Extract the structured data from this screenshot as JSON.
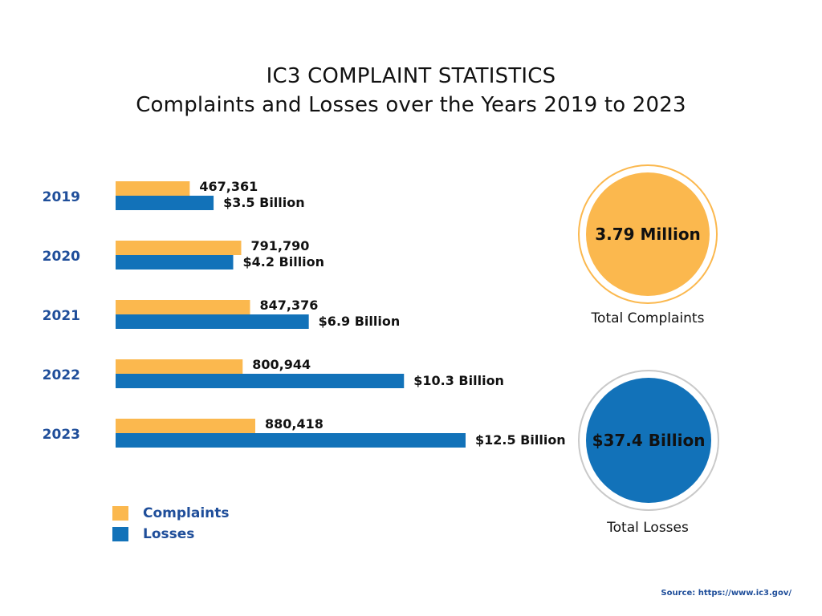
{
  "title": "IC3 COMPLAINT STATISTICS",
  "subtitle": "Complaints and Losses over the Years 2019 to 2023",
  "chart_data": {
    "type": "bar",
    "orientation": "horizontal",
    "categories": [
      "2019",
      "2020",
      "2021",
      "2022",
      "2023"
    ],
    "series": [
      {
        "name": "Complaints",
        "values": [
          467361,
          791790,
          847376,
          800944,
          880418
        ],
        "labels": [
          "467,361",
          "791,790",
          "847,376",
          "800,944",
          "880,418"
        ],
        "color": "#fbb84e"
      },
      {
        "name": "Losses",
        "values": [
          3.5,
          4.2,
          6.9,
          10.3,
          12.5
        ],
        "labels": [
          "$3.5 Billion",
          "$4.2 Billion",
          "$6.9 Billion",
          "$10.3 Billion",
          "$12.5 Billion"
        ],
        "color": "#1272b9"
      }
    ],
    "legend_position": "bottom-left",
    "grid": false
  },
  "summary": {
    "complaints": {
      "value": "3.79 Million",
      "label": "Total Complaints",
      "color": "#fbb84e"
    },
    "losses": {
      "value": "$37.4 Billion",
      "label": "Total Losses",
      "color": "#1272b9"
    }
  },
  "source": "Source: https://www.ic3.gov/"
}
